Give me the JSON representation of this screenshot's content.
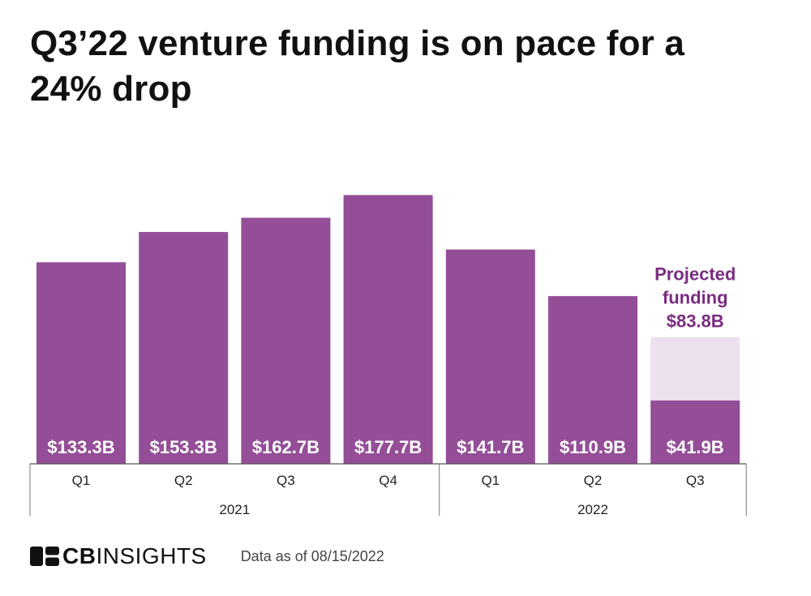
{
  "title": "Q3’22 venture funding is on pace for a 24% drop",
  "chart_data": {
    "type": "bar",
    "categories": [
      "Q1",
      "Q2",
      "Q3",
      "Q4",
      "Q1",
      "Q2",
      "Q3"
    ],
    "groups": [
      {
        "label": "2021",
        "count": 4
      },
      {
        "label": "2022",
        "count": 3
      }
    ],
    "values": [
      133.3,
      153.3,
      162.7,
      177.7,
      141.7,
      110.9,
      41.9
    ],
    "value_labels": [
      "$133.3B",
      "$153.3B",
      "$162.7B",
      "$177.7B",
      "$141.7B",
      "$110.9B",
      "$41.9B"
    ],
    "projected": {
      "index": 6,
      "value": 83.8,
      "label_lines": [
        "Projected",
        "funding",
        "$83.8B"
      ]
    },
    "ylim": [
      0,
      178
    ],
    "colors": {
      "bar": "#944e98",
      "projected": "#ede1ef",
      "projected_text": "#7b2c81"
    },
    "grid": false
  },
  "footer": {
    "logo_bold": "CB",
    "logo_light": "INSIGHTS",
    "note": "Data as of 08/15/2022"
  }
}
